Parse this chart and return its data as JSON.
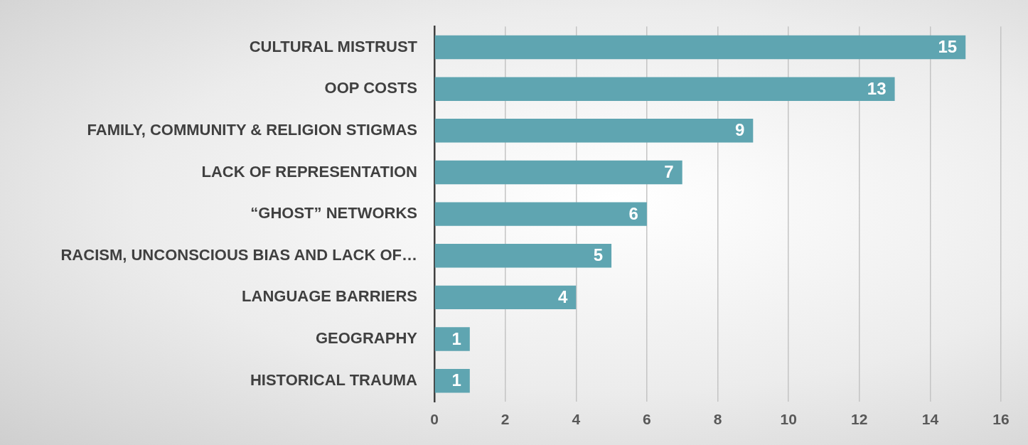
{
  "chart_data": {
    "type": "bar",
    "orientation": "horizontal",
    "categories": [
      "CULTURAL MISTRUST",
      "OOP COSTS",
      "FAMILY, COMMUNITY & RELIGION STIGMAS",
      "LACK OF REPRESENTATION",
      "“GHOST” NETWORKS",
      "RACISM, UNCONSCIOUS BIAS AND LACK OF…",
      "LANGUAGE BARRIERS",
      "GEOGRAPHY",
      "HISTORICAL TRAUMA"
    ],
    "values": [
      15,
      13,
      9,
      7,
      6,
      5,
      4,
      1,
      1
    ],
    "color": "#5fa5b1",
    "xlim": [
      0,
      16
    ],
    "xticks": [
      0,
      2,
      4,
      6,
      8,
      10,
      12,
      14,
      16
    ],
    "grid": "x",
    "legend": false,
    "data_labels": true
  }
}
